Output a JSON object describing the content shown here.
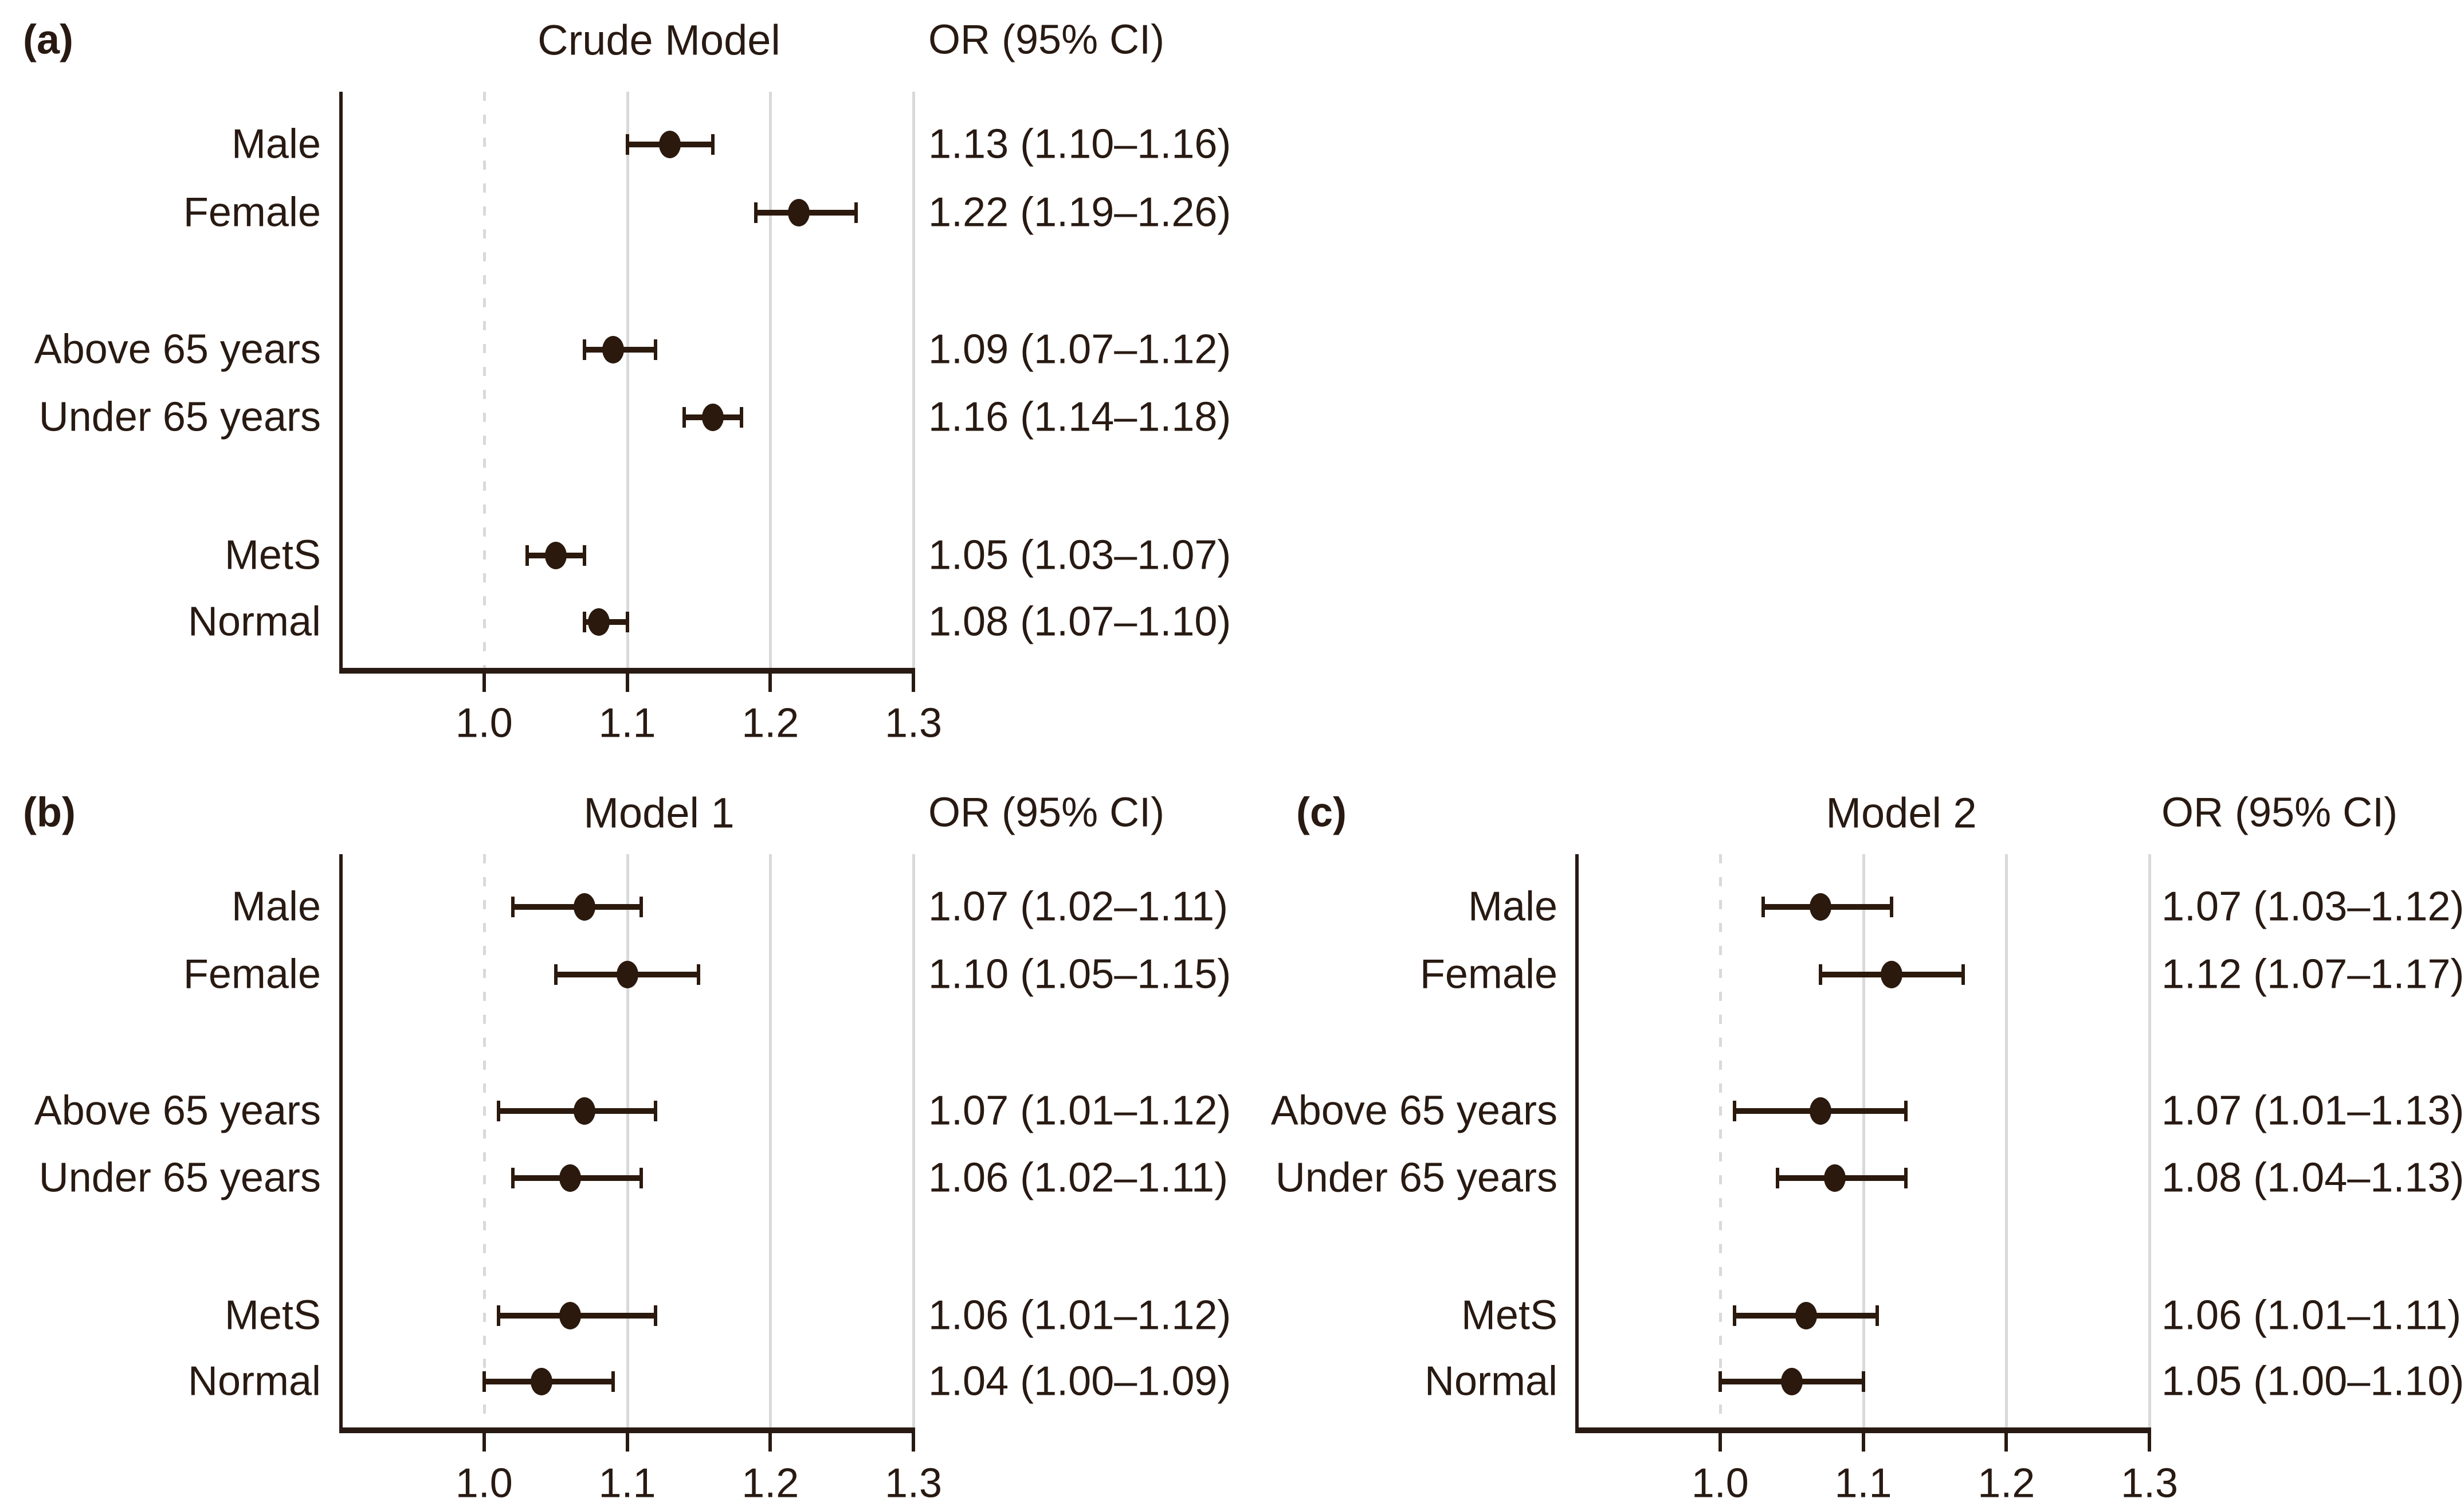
{
  "figure": {
    "type": "forest-plot-figure",
    "background": "#ffffff",
    "colors": {
      "ink": "#281a12",
      "marker": "#2b190d",
      "grid": "#d9d9d9",
      "reference": "#d9d9d9",
      "axis": "#281a12"
    }
  },
  "chart_data": [
    {
      "type": "forest",
      "panel_label": "(a)",
      "title": "Crude Model",
      "value_header": "OR (95% CI)",
      "categories": [
        "Male",
        "Female",
        "Above 65 years",
        "Under 65 years",
        "MetS",
        "Normal"
      ],
      "or": [
        1.13,
        1.22,
        1.09,
        1.16,
        1.05,
        1.08
      ],
      "ci_low": [
        1.1,
        1.19,
        1.07,
        1.14,
        1.03,
        1.07
      ],
      "ci_high": [
        1.16,
        1.26,
        1.12,
        1.18,
        1.07,
        1.1
      ],
      "value_labels": [
        "1.13 (1.10–1.16)",
        "1.22 (1.19–1.26)",
        "1.09 (1.07–1.12)",
        "1.16 (1.14–1.18)",
        "1.05 (1.03–1.07)",
        "1.08 (1.07–1.10)"
      ],
      "xlim": [
        0.9,
        1.3
      ],
      "x_ticks": [
        1.0,
        1.1,
        1.2,
        1.3
      ],
      "x_tick_labels": [
        "1.0",
        "1.1",
        "1.2",
        "1.3"
      ],
      "reference_line": 1.0,
      "gridlines": [
        1.1,
        1.2,
        1.3
      ],
      "xlabel": "",
      "ylabel": "",
      "grid": true,
      "legend": "none"
    },
    {
      "type": "forest",
      "panel_label": "(b)",
      "title": "Model 1",
      "value_header": "OR (95% CI)",
      "categories": [
        "Male",
        "Female",
        "Above 65 years",
        "Under 65 years",
        "MetS",
        "Normal"
      ],
      "or": [
        1.07,
        1.1,
        1.07,
        1.06,
        1.06,
        1.04
      ],
      "ci_low": [
        1.02,
        1.05,
        1.01,
        1.02,
        1.01,
        1.0
      ],
      "ci_high": [
        1.11,
        1.15,
        1.12,
        1.11,
        1.12,
        1.09
      ],
      "value_labels": [
        "1.07 (1.02–1.11)",
        "1.10 (1.05–1.15)",
        "1.07 (1.01–1.12)",
        "1.06 (1.02–1.11)",
        "1.06 (1.01–1.12)",
        "1.04 (1.00–1.09)"
      ],
      "xlim": [
        0.9,
        1.3
      ],
      "x_ticks": [
        1.0,
        1.1,
        1.2,
        1.3
      ],
      "x_tick_labels": [
        "1.0",
        "1.1",
        "1.2",
        "1.3"
      ],
      "reference_line": 1.0,
      "gridlines": [
        1.1,
        1.2,
        1.3
      ],
      "xlabel": "",
      "ylabel": "",
      "grid": true,
      "legend": "none"
    },
    {
      "type": "forest",
      "panel_label": "(c)",
      "title": "Model 2",
      "value_header": "OR (95% CI)",
      "categories": [
        "Male",
        "Female",
        "Above 65 years",
        "Under 65 years",
        "MetS",
        "Normal"
      ],
      "or": [
        1.07,
        1.12,
        1.07,
        1.08,
        1.06,
        1.05
      ],
      "ci_low": [
        1.03,
        1.07,
        1.01,
        1.04,
        1.01,
        1.0
      ],
      "ci_high": [
        1.12,
        1.17,
        1.13,
        1.13,
        1.11,
        1.1
      ],
      "value_labels": [
        "1.07 (1.03–1.12)",
        "1.12 (1.07–1.17)",
        "1.07 (1.01–1.13)",
        "1.08 (1.04–1.13)",
        "1.06 (1.01–1.11)",
        "1.05 (1.00–1.10)"
      ],
      "xlim": [
        0.9,
        1.3
      ],
      "x_ticks": [
        1.0,
        1.1,
        1.2,
        1.3
      ],
      "x_tick_labels": [
        "1.0",
        "1.1",
        "1.2",
        "1.3"
      ],
      "reference_line": 1.0,
      "gridlines": [
        1.1,
        1.2,
        1.3
      ],
      "xlabel": "",
      "ylabel": "",
      "grid": true,
      "legend": "none"
    }
  ]
}
